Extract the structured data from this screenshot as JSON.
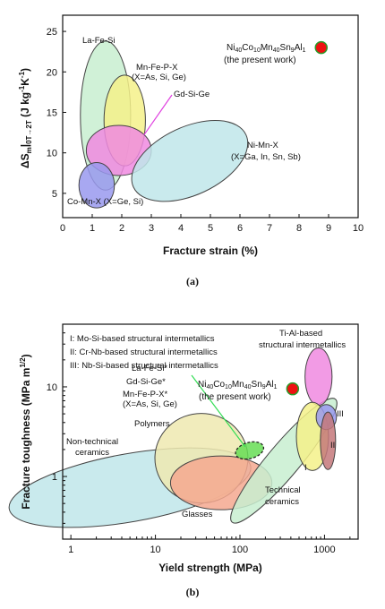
{
  "chart_data": [
    {
      "type": "scatter",
      "caption": "(a)",
      "xlabel": "Fracture strain (%)",
      "ylabel_parts": [
        "ΔS",
        "m",
        "|",
        "0T→2T",
        " (J kg",
        "-1",
        "K",
        "-1",
        ")"
      ],
      "xlim": [
        0,
        10
      ],
      "ylim": [
        2,
        27
      ],
      "xticks": [
        "0",
        "1",
        "2",
        "3",
        "4",
        "5",
        "6",
        "7",
        "8",
        "9",
        "10"
      ],
      "yticks": [
        "5",
        "10",
        "15",
        "20",
        "25"
      ],
      "ytick_values": [
        5,
        10,
        15,
        20,
        25
      ],
      "regions": [
        {
          "label": "La-Fe-Si",
          "cx": 1.45,
          "cy": 14.6,
          "rx": 0.85,
          "ry": 9.2,
          "rot": 0,
          "fill": "#c8eed0",
          "stroke": "#444444"
        },
        {
          "label": "Mn-Fe-P-X (X=As, Si, Ge)",
          "cx": 2.1,
          "cy": 14.0,
          "rx": 0.7,
          "ry": 5.6,
          "rot": 0,
          "fill": "#f4f18a",
          "stroke": "#444444"
        },
        {
          "label": "Gd-Si-Ge",
          "cx": 1.9,
          "cy": 10.3,
          "rx": 1.1,
          "ry": 3.1,
          "rot": 0,
          "fill": "#f08ae0",
          "stroke": "#444444"
        },
        {
          "label": "Ni-Mn-X (X=Ga, In, Sn, Sb)",
          "cx": 4.3,
          "cy": 9.0,
          "rx": 2.1,
          "ry": 4.2,
          "rot": -25,
          "fill": "#bfe6ea",
          "stroke": "#444444"
        },
        {
          "label": "Co-Mn-X (X=Ge, Si)",
          "cx": 1.15,
          "cy": 6.0,
          "rx": 0.6,
          "ry": 2.8,
          "rot": 0,
          "fill": "#9999ee",
          "stroke": "#444444"
        }
      ],
      "point": {
        "label_line1": "Ni40Co10Mn40Sn9Al1",
        "label_line2": "(the present work)",
        "x": 8.75,
        "y": 23.0,
        "color": "#ee1111"
      },
      "labels": {
        "la_fe_si": "La-Fe-Si",
        "mn_fe_p_x_1": "Mn-Fe-P-X",
        "mn_fe_p_x_2": "(X=As, Si, Ge)",
        "gd_si_ge": "Gd-Si-Ge",
        "ni_mn_x_1": "Ni-Mn-X",
        "ni_mn_x_2": "(X=Ga, In, Sn, Sb)",
        "co_mn_x": "Co-Mn-X (X=Ge, Si)",
        "ni_parts": [
          "Ni",
          "40",
          "Co",
          "10",
          "Mn",
          "40",
          "Sn",
          "9",
          "Al",
          "1"
        ],
        "present": "(the present work)"
      }
    },
    {
      "type": "scatter",
      "caption": "(b)",
      "xlabel": "Yield strength (MPa)",
      "ylabel": "Fracture toughness (MPa m",
      "ylabel_sup": "1/2",
      "ylabel_end": ")",
      "xscale": "log",
      "yscale": "log",
      "xlim": [
        0.8,
        2500
      ],
      "ylim": [
        0.2,
        50
      ],
      "xticks": [
        "1",
        "10",
        "100",
        "1000"
      ],
      "xtick_values": [
        1,
        10,
        100,
        1000
      ],
      "yticks": [
        "1",
        "10"
      ],
      "ytick_values": [
        1,
        10
      ],
      "legend_lines": [
        "I: Mo-Si-based structural intermetallics",
        "II: Cr-Nb-based structural intermetallics",
        "III: Nb-Si-based structural intermetallics"
      ],
      "regions": [
        {
          "label": "Non-technical ceramics",
          "cx": 5.0,
          "cy": 0.75,
          "rx": 1.45,
          "ry": 0.38,
          "rot": -10,
          "fill": "#bfe6ea",
          "stroke": "#444444"
        },
        {
          "label": "Polymers",
          "cx": 35,
          "cy": 1.6,
          "rx": 0.55,
          "ry": 0.5,
          "rot": 0,
          "fill": "#eee9b0",
          "stroke": "#444444"
        },
        {
          "label": "Glasses",
          "cx": 60,
          "cy": 0.85,
          "rx": 0.6,
          "ry": 0.3,
          "rot": 0,
          "fill": "#f5a88f",
          "stroke": "#444444"
        },
        {
          "label": "Technical ceramics",
          "cx": 330,
          "cy": 1.5,
          "rx": 0.95,
          "ry": 0.18,
          "rot": -50,
          "fill": "#c8eed0",
          "stroke": "#444444"
        },
        {
          "label": "Ti-Al-based structural intermetallics",
          "cx": 850,
          "cy": 13.0,
          "rx": 0.16,
          "ry": 0.32,
          "rot": 0,
          "fill": "#f08ae0",
          "stroke": "#444444"
        },
        {
          "label": "I",
          "cx": 720,
          "cy": 2.8,
          "rx": 0.19,
          "ry": 0.38,
          "rot": 0,
          "fill": "#f4f18a",
          "stroke": "#444444"
        },
        {
          "label": "III",
          "cx": 1050,
          "cy": 4.6,
          "rx": 0.12,
          "ry": 0.14,
          "rot": 0,
          "fill": "#9999ee",
          "stroke": "#444444"
        },
        {
          "label": "II",
          "cx": 1100,
          "cy": 2.5,
          "rx": 0.09,
          "ry": 0.32,
          "rot": 0,
          "fill": "#c4787a",
          "stroke": "#444444"
        },
        {
          "label": "La-Fe-Si* Gd-Si-Ge* Mn-Fe-P-X*",
          "cx": 130,
          "cy": 1.95,
          "rx": 0.17,
          "ry": 0.09,
          "rot": -15,
          "fill": "#66dd55",
          "stroke": "#222222",
          "dashed": true
        }
      ],
      "point": {
        "label_line1": "Ni40Co10Mn40Sn9Al1",
        "label_line2": "(the present work)",
        "x": 420,
        "y": 9.5,
        "color": "#ee1111"
      },
      "labels": {
        "ti_al_1": "Ti-Al-based",
        "ti_al_2": "structural intermetallics",
        "la_fe_si": "La-Fe-Si*",
        "gd_si_ge": "Gd-Si-Ge*",
        "mn_fe_p_x_1": "Mn-Fe-P-X*",
        "mn_fe_p_x_2": "(X=As, Si, Ge)",
        "polymers": "Polymers",
        "non_tech_1": "Non-technical",
        "non_tech_2": "ceramics",
        "glasses": "Glasses",
        "tech_1": "Technical",
        "tech_2": "ceramics",
        "i": "I",
        "ii": "II",
        "iii": "III",
        "ni_parts": [
          "Ni",
          "40",
          "Co",
          "10",
          "Mn",
          "40",
          "Sn",
          "9",
          "Al",
          "1"
        ],
        "present": "(the present work)"
      }
    }
  ]
}
